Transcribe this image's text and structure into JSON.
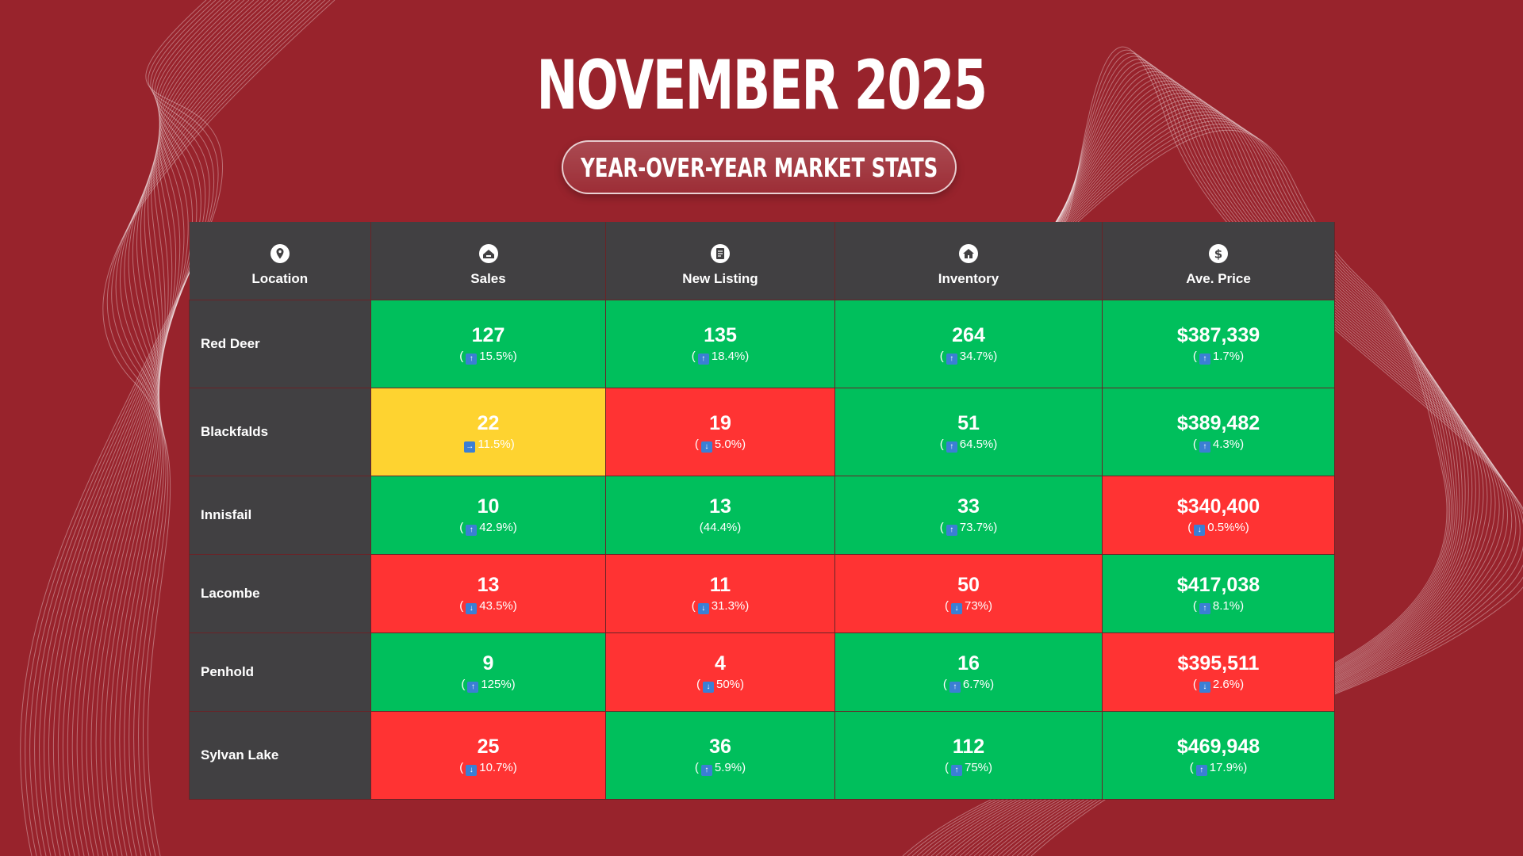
{
  "title": "NOVEMBER 2025",
  "subtitle": "YEAR-OVER-YEAR MARKET STATS",
  "colors": {
    "background": "#98232c",
    "header": "#414042",
    "up": "#00bf5c",
    "down": "#ff3333",
    "flat": "#fed330",
    "arrow": "#3b7fd4"
  },
  "headers": [
    {
      "label": "Location",
      "icon": "map-pin-icon"
    },
    {
      "label": "Sales",
      "icon": "house-sale-icon"
    },
    {
      "label": "New Listing",
      "icon": "listing-document-icon"
    },
    {
      "label": "Inventory",
      "icon": "home-icon"
    },
    {
      "label": "Ave. Price",
      "icon": "dollar-icon"
    }
  ],
  "rows": [
    {
      "location": "Red Deer",
      "cells": [
        {
          "value": "127",
          "change": "( 15.5%)",
          "direction": "up",
          "color": "green"
        },
        {
          "value": "135",
          "change": "( 18.4%)",
          "direction": "up",
          "color": "green"
        },
        {
          "value": "264",
          "change": "( 34.7%)",
          "direction": "up",
          "color": "green"
        },
        {
          "value": "$387,339",
          "change": "( 1.7%)",
          "direction": "up",
          "color": "green"
        }
      ]
    },
    {
      "location": "Blackfalds",
      "cells": [
        {
          "value": "22",
          "change": " 11.5%)",
          "direction": "right",
          "color": "yellow"
        },
        {
          "value": "19",
          "change": "( 5.0%)",
          "direction": "down",
          "color": "red"
        },
        {
          "value": "51",
          "change": "( 64.5%)",
          "direction": "up",
          "color": "green"
        },
        {
          "value": "$389,482",
          "change": "( 4.3%)",
          "direction": "up",
          "color": "green"
        }
      ]
    },
    {
      "location": "Innisfail",
      "cells": [
        {
          "value": "10",
          "change": "( 42.9%)",
          "direction": "up",
          "color": "green"
        },
        {
          "value": "13",
          "change": "(44.4%)",
          "direction": "none",
          "color": "green"
        },
        {
          "value": "33",
          "change": "( 73.7%)",
          "direction": "up",
          "color": "green"
        },
        {
          "value": "$340,400",
          "change": "( 0.5%%)",
          "direction": "down",
          "color": "red"
        }
      ]
    },
    {
      "location": "Lacombe",
      "cells": [
        {
          "value": "13",
          "change": "( 43.5%)",
          "direction": "down",
          "color": "red"
        },
        {
          "value": "11",
          "change": "( 31.3%)",
          "direction": "down",
          "color": "red"
        },
        {
          "value": "50",
          "change": "(73%)",
          "direction": "down",
          "color": "red"
        },
        {
          "value": "$417,038",
          "change": "( 8.1%)",
          "direction": "up",
          "color": "green"
        }
      ]
    },
    {
      "location": "Penhold",
      "cells": [
        {
          "value": "9",
          "change": "( 125%)",
          "direction": "up",
          "color": "green"
        },
        {
          "value": "4",
          "change": "( 50%)",
          "direction": "down",
          "color": "red"
        },
        {
          "value": "16",
          "change": "( 6.7%)",
          "direction": "up",
          "color": "green"
        },
        {
          "value": "$395,511",
          "change": "( 2.6%)",
          "direction": "down",
          "color": "red"
        }
      ]
    },
    {
      "location": "Sylvan Lake",
      "cells": [
        {
          "value": "25",
          "change": "( 10.7%)",
          "direction": "down",
          "color": "red"
        },
        {
          "value": "36",
          "change": "( 5.9%)",
          "direction": "up",
          "color": "green"
        },
        {
          "value": "112",
          "change": "( 75%)",
          "direction": "up",
          "color": "green"
        },
        {
          "value": "$469,948",
          "change": "( 17.9%)",
          "direction": "up",
          "color": "green"
        }
      ]
    }
  ]
}
